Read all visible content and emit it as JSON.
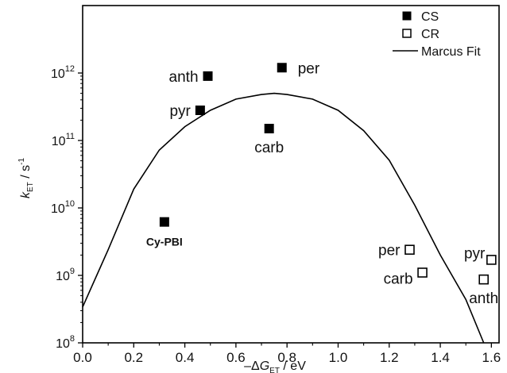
{
  "chart_data": {
    "type": "scatter",
    "title": "",
    "xlabel": {
      "prefix": "–Δ",
      "var": "G",
      "sub": "ET",
      "suffix": " / eV"
    },
    "ylabel": {
      "var": "k",
      "sub": "ET",
      "mid": " / s",
      "sup": "-1"
    },
    "xlim": [
      0.0,
      1.63
    ],
    "ylim": [
      100000000.0,
      10000000000000.0
    ],
    "yscale": "log",
    "x_ticks": [
      {
        "value": 0.0,
        "label": "0.0"
      },
      {
        "value": 0.2,
        "label": "0.2"
      },
      {
        "value": 0.4,
        "label": "0.4"
      },
      {
        "value": 0.6,
        "label": "0.6"
      },
      {
        "value": 0.8,
        "label": "0.8"
      },
      {
        "value": 1.0,
        "label": "1.0"
      },
      {
        "value": 1.2,
        "label": "1.2"
      },
      {
        "value": 1.4,
        "label": "1.4"
      },
      {
        "value": 1.6,
        "label": "1.6"
      }
    ],
    "y_ticks": [
      {
        "value": 100000000.0,
        "base": "10",
        "exp": "8"
      },
      {
        "value": 1000000000.0,
        "base": "10",
        "exp": "9"
      },
      {
        "value": 10000000000.0,
        "base": "10",
        "exp": "10"
      },
      {
        "value": 100000000000.0,
        "base": "10",
        "exp": "11"
      },
      {
        "value": 1000000000000.0,
        "base": "10",
        "exp": "12"
      }
    ],
    "grid": false,
    "legend": {
      "position": "top-right",
      "entries": [
        {
          "label": "CS",
          "marker": "filled-square"
        },
        {
          "label": "CR",
          "marker": "open-square"
        },
        {
          "label": "Marcus Fit",
          "marker": "line"
        }
      ]
    },
    "series": [
      {
        "name": "CS",
        "marker": "filled-square",
        "points": [
          {
            "x": 0.32,
            "y": 6200000000.0,
            "label": "Cy-PBI",
            "label_pos": "below",
            "bold": true
          },
          {
            "x": 0.46,
            "y": 280000000000.0,
            "label": "pyr",
            "label_pos": "left",
            "bold": false
          },
          {
            "x": 0.49,
            "y": 900000000000.0,
            "label": "anth",
            "label_pos": "left",
            "bold": false
          },
          {
            "x": 0.73,
            "y": 150000000000.0,
            "label": "carb",
            "label_pos": "below",
            "bold": false
          },
          {
            "x": 0.78,
            "y": 1200000000000.0,
            "label": "per",
            "label_pos": "right",
            "bold": false
          }
        ]
      },
      {
        "name": "CR",
        "marker": "open-square",
        "points": [
          {
            "x": 1.28,
            "y": 2400000000.0,
            "label": "per",
            "label_pos": "left",
            "bold": false
          },
          {
            "x": 1.33,
            "y": 1100000000.0,
            "label": "carb",
            "label_pos": "left-below",
            "bold": false
          },
          {
            "x": 1.57,
            "y": 870000000.0,
            "label": "anth",
            "label_pos": "below",
            "bold": false
          },
          {
            "x": 1.6,
            "y": 1700000000.0,
            "label": "pyr",
            "label_pos": "left-above",
            "bold": false
          }
        ]
      },
      {
        "name": "Marcus Fit",
        "type": "line",
        "points": [
          {
            "x": 0.0,
            "y": 340000000.0
          },
          {
            "x": 0.1,
            "y": 2400000000.0
          },
          {
            "x": 0.2,
            "y": 19000000000.0
          },
          {
            "x": 0.3,
            "y": 72000000000.0
          },
          {
            "x": 0.4,
            "y": 160000000000.0
          },
          {
            "x": 0.5,
            "y": 280000000000.0
          },
          {
            "x": 0.6,
            "y": 410000000000.0
          },
          {
            "x": 0.7,
            "y": 480000000000.0
          },
          {
            "x": 0.75,
            "y": 500000000000.0
          },
          {
            "x": 0.8,
            "y": 480000000000.0
          },
          {
            "x": 0.9,
            "y": 410000000000.0
          },
          {
            "x": 1.0,
            "y": 280000000000.0
          },
          {
            "x": 1.1,
            "y": 140000000000.0
          },
          {
            "x": 1.2,
            "y": 51000000000.0
          },
          {
            "x": 1.3,
            "y": 11000000000.0
          },
          {
            "x": 1.4,
            "y": 2000000000.0
          },
          {
            "x": 1.5,
            "y": 440000000.0
          },
          {
            "x": 1.57,
            "y": 100000000.0
          }
        ]
      }
    ]
  }
}
